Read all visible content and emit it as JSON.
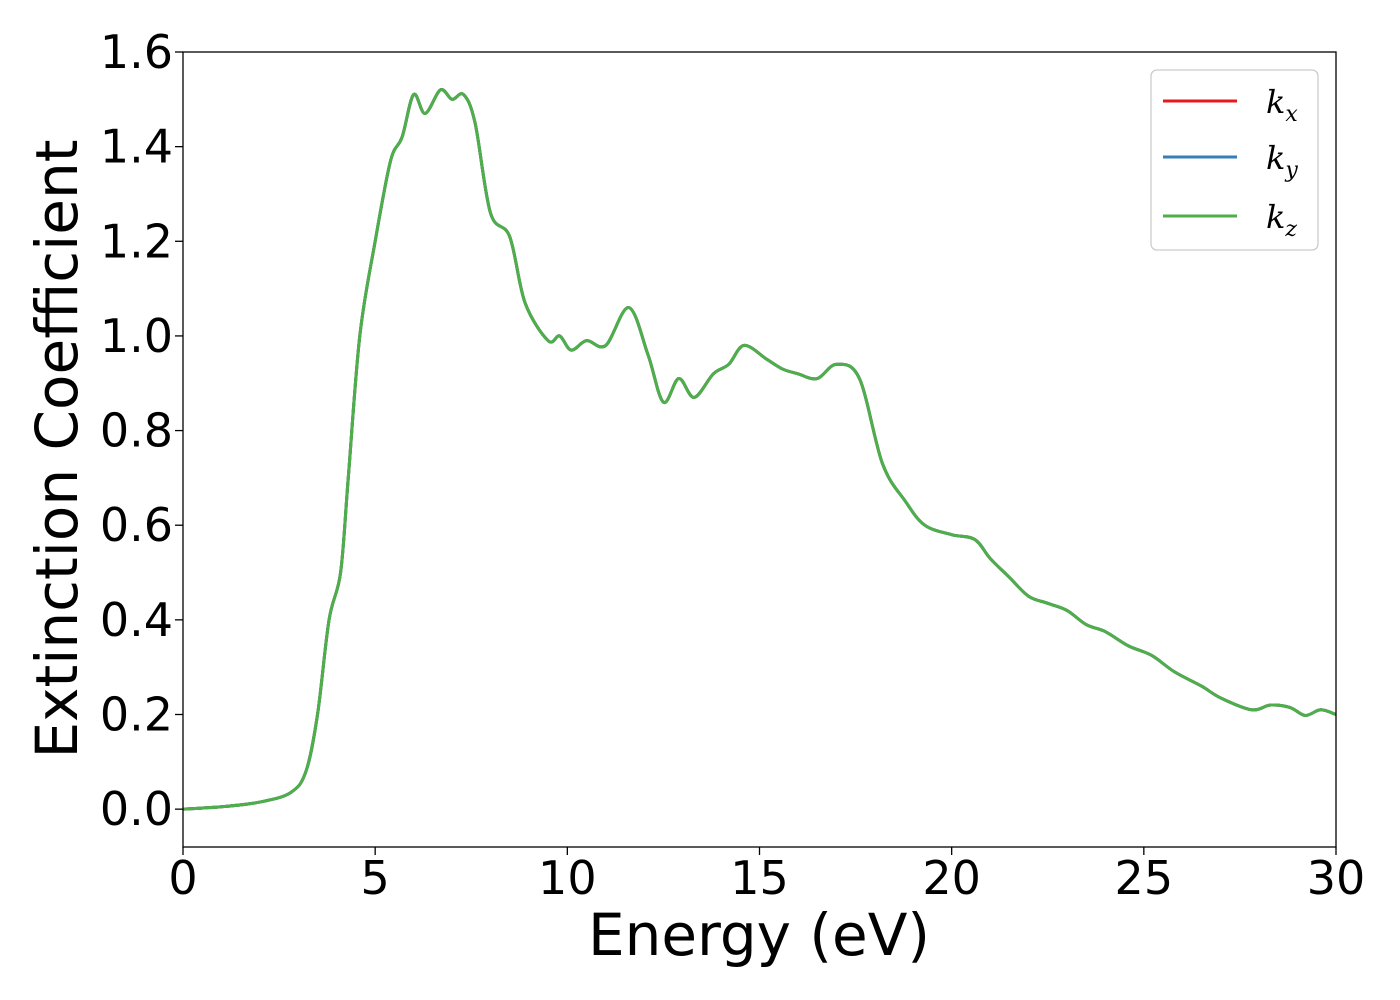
{
  "chart_data": {
    "type": "line",
    "xlabel": "Energy (eV)",
    "ylabel": "Extinction Coefficient",
    "xlim": [
      0,
      30
    ],
    "ylim": [
      -0.08,
      1.6
    ],
    "xticks": [
      0,
      5,
      10,
      15,
      20,
      25,
      30
    ],
    "xtick_labels": [
      "0",
      "5",
      "10",
      "15",
      "20",
      "25",
      "30"
    ],
    "yticks": [
      0.0,
      0.2,
      0.4,
      0.6,
      0.8,
      1.0,
      1.2,
      1.4,
      1.6
    ],
    "ytick_labels": [
      "0.0",
      "0.2",
      "0.4",
      "0.6",
      "0.8",
      "1.0",
      "1.2",
      "1.4",
      "1.6"
    ],
    "grid": false,
    "legend_position": "top-right",
    "series": [
      {
        "name": "k",
        "subscript": "x",
        "color": "#e41a1c",
        "data_ref": "shared"
      },
      {
        "name": "k",
        "subscript": "y",
        "color": "#377eb8",
        "data_ref": "shared"
      },
      {
        "name": "k",
        "subscript": "z",
        "color": "#4daf4a",
        "data_ref": "shared"
      }
    ],
    "shared_points": [
      [
        0,
        0.0
      ],
      [
        1,
        0.005
      ],
      [
        2,
        0.015
      ],
      [
        2.8,
        0.035
      ],
      [
        3.2,
        0.08
      ],
      [
        3.5,
        0.2
      ],
      [
        3.8,
        0.4
      ],
      [
        4.1,
        0.5
      ],
      [
        4.3,
        0.7
      ],
      [
        4.6,
        1.0
      ],
      [
        5.0,
        1.2
      ],
      [
        5.4,
        1.37
      ],
      [
        5.7,
        1.42
      ],
      [
        6.0,
        1.51
      ],
      [
        6.3,
        1.47
      ],
      [
        6.7,
        1.52
      ],
      [
        7.0,
        1.5
      ],
      [
        7.3,
        1.51
      ],
      [
        7.6,
        1.45
      ],
      [
        8.0,
        1.26
      ],
      [
        8.5,
        1.21
      ],
      [
        8.9,
        1.07
      ],
      [
        9.5,
        0.99
      ],
      [
        9.8,
        1.0
      ],
      [
        10.1,
        0.97
      ],
      [
        10.5,
        0.99
      ],
      [
        11.0,
        0.98
      ],
      [
        11.6,
        1.06
      ],
      [
        12.1,
        0.96
      ],
      [
        12.5,
        0.86
      ],
      [
        12.9,
        0.91
      ],
      [
        13.3,
        0.87
      ],
      [
        13.8,
        0.92
      ],
      [
        14.2,
        0.94
      ],
      [
        14.6,
        0.98
      ],
      [
        15.2,
        0.95
      ],
      [
        15.6,
        0.93
      ],
      [
        16.0,
        0.92
      ],
      [
        16.5,
        0.91
      ],
      [
        17.0,
        0.94
      ],
      [
        17.6,
        0.91
      ],
      [
        18.2,
        0.73
      ],
      [
        18.8,
        0.65
      ],
      [
        19.3,
        0.6
      ],
      [
        20.0,
        0.58
      ],
      [
        20.6,
        0.57
      ],
      [
        21.0,
        0.53
      ],
      [
        21.5,
        0.49
      ],
      [
        22.0,
        0.45
      ],
      [
        22.5,
        0.435
      ],
      [
        23.0,
        0.42
      ],
      [
        23.5,
        0.39
      ],
      [
        24.0,
        0.375
      ],
      [
        24.6,
        0.345
      ],
      [
        25.2,
        0.325
      ],
      [
        25.8,
        0.29
      ],
      [
        26.5,
        0.26
      ],
      [
        27.0,
        0.235
      ],
      [
        27.8,
        0.21
      ],
      [
        28.3,
        0.22
      ],
      [
        28.8,
        0.215
      ],
      [
        29.2,
        0.198
      ],
      [
        29.6,
        0.21
      ],
      [
        30.0,
        0.2
      ]
    ]
  }
}
